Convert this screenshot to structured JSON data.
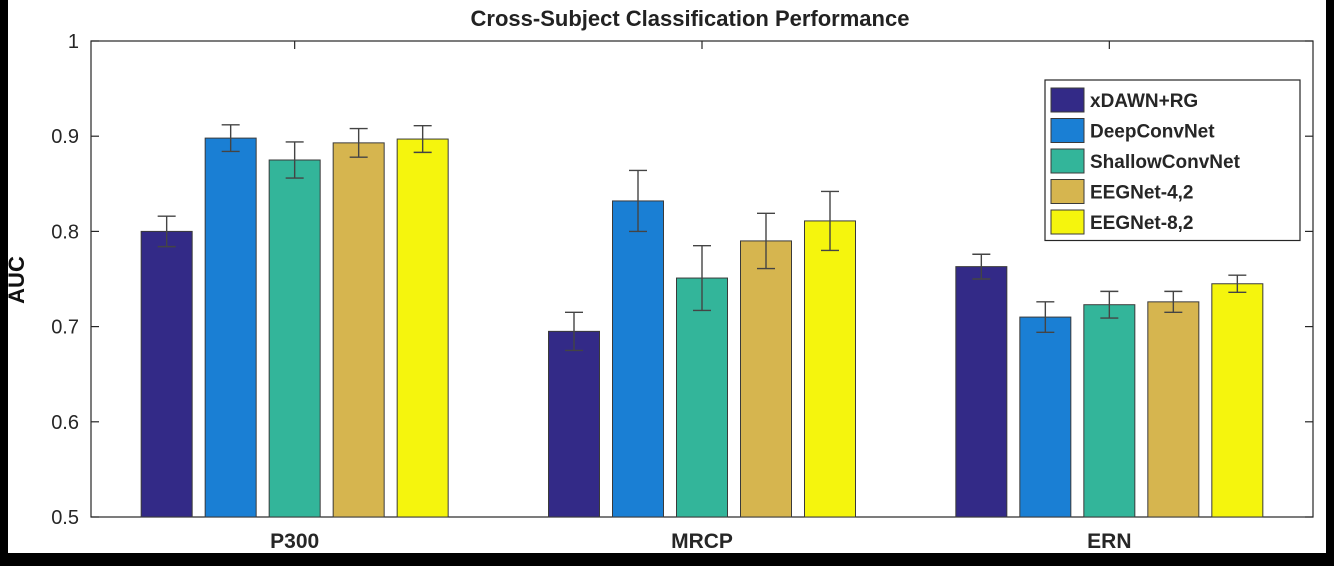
{
  "chart_data": {
    "type": "bar",
    "title": "Cross-Subject Classification Performance",
    "xlabel": "",
    "ylabel": "AUC",
    "ylim": [
      0.5,
      1.0
    ],
    "yticks": [
      0.5,
      0.6,
      0.7,
      0.8,
      0.9,
      1.0
    ],
    "ytick_labels": [
      "0.5",
      "0.6",
      "0.7",
      "0.8",
      "0.9",
      "1"
    ],
    "grid": false,
    "legend_position": "top-right",
    "categories": [
      "P300",
      "MRCP",
      "ERN"
    ],
    "series": [
      {
        "name": "xDAWN+RG",
        "color": "#332a87",
        "values": [
          0.8,
          0.695,
          0.763
        ],
        "errors": [
          0.016,
          0.02,
          0.013
        ]
      },
      {
        "name": "DeepConvNet",
        "color": "#1a7fd4",
        "values": [
          0.898,
          0.832,
          0.71
        ],
        "errors": [
          0.014,
          0.032,
          0.016
        ]
      },
      {
        "name": "ShallowConvNet",
        "color": "#33b59a",
        "values": [
          0.875,
          0.751,
          0.723
        ],
        "errors": [
          0.019,
          0.034,
          0.014
        ]
      },
      {
        "name": "EEGNet-4,2",
        "color": "#d6b54f",
        "values": [
          0.893,
          0.79,
          0.726
        ],
        "errors": [
          0.015,
          0.029,
          0.011
        ]
      },
      {
        "name": "EEGNet-8,2",
        "color": "#f5f50d",
        "values": [
          0.897,
          0.811,
          0.745
        ],
        "errors": [
          0.014,
          0.031,
          0.009
        ]
      }
    ]
  }
}
